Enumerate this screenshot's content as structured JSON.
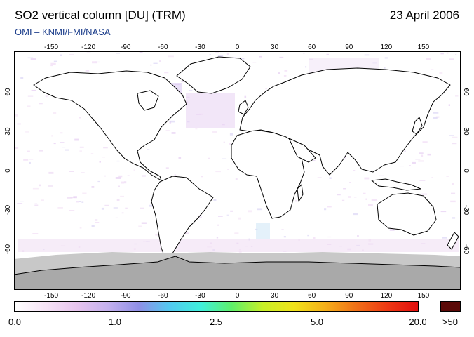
{
  "header": {
    "title": "SO2 vertical column [DU] (TRM)",
    "date": "23 April 2006",
    "subtitle": "OMI  –  KNMI/FMI/NASA"
  },
  "map": {
    "lon_ticks": [
      "-150",
      "-120",
      "-90",
      "-60",
      "-30",
      "0",
      "30",
      "60",
      "90",
      "120",
      "150"
    ],
    "lat_ticks": [
      "60",
      "30",
      "0",
      "-30",
      "-60"
    ],
    "land_color": "#ffffff",
    "coast_color": "#000000",
    "no_data_color": "#a9a9a9",
    "no_data_light_color": "#c8c8c8"
  },
  "colorbar": {
    "labels": [
      "0.0",
      "1.0",
      "2.5",
      "5.0",
      "20.0",
      ">50"
    ],
    "colors": [
      "#ffffff",
      "#f6e3f6",
      "#e7c4ee",
      "#c4b0ee",
      "#8f8fe6",
      "#52c9f0",
      "#3ff0dc",
      "#5ef06a",
      "#c7f028",
      "#f0e21a",
      "#f5b01a",
      "#f07118",
      "#ee3a14",
      "#e20f0f"
    ],
    "over_color": "#5b0a08"
  }
}
